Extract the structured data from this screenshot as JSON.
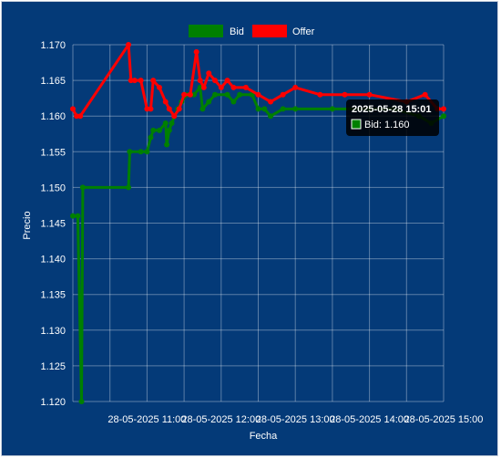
{
  "chart_data": {
    "type": "line",
    "xlabel": "Fecha",
    "ylabel": "Precio",
    "ylim": [
      1.12,
      1.17
    ],
    "y_ticks": [
      "1.170",
      "1.165",
      "1.160",
      "1.155",
      "1.150",
      "1.145",
      "1.140",
      "1.135",
      "1.130",
      "1.125",
      "1.120"
    ],
    "x_ticks": [
      "28-05-2025 11:00",
      "28-05-2025 12:00",
      "28-05-2025 13:00",
      "28-05-2025 14:00",
      "28-05-2025 15:00"
    ],
    "legend_position": "top-center",
    "grid": true,
    "series": [
      {
        "name": "Bid",
        "color": "#008000",
        "points": [
          [
            "10:00",
            1.146
          ],
          [
            "10:04",
            1.146
          ],
          [
            "10:07",
            1.12
          ],
          [
            "10:08",
            1.15
          ],
          [
            "10:45",
            1.15
          ],
          [
            "10:46",
            1.155
          ],
          [
            "10:55",
            1.155
          ],
          [
            "11:00",
            1.155
          ],
          [
            "11:03",
            1.157
          ],
          [
            "11:05",
            1.158
          ],
          [
            "11:10",
            1.158
          ],
          [
            "11:15",
            1.159
          ],
          [
            "11:16",
            1.156
          ],
          [
            "11:18",
            1.158
          ],
          [
            "11:20",
            1.159
          ],
          [
            "11:25",
            1.161
          ],
          [
            "11:28",
            1.162
          ],
          [
            "11:32",
            1.163
          ],
          [
            "11:38",
            1.163
          ],
          [
            "11:43",
            1.164
          ],
          [
            "11:45",
            1.161
          ],
          [
            "11:50",
            1.162
          ],
          [
            "11:55",
            1.163
          ],
          [
            "12:05",
            1.163
          ],
          [
            "12:10",
            1.162
          ],
          [
            "12:15",
            1.163
          ],
          [
            "12:25",
            1.163
          ],
          [
            "12:30",
            1.161
          ],
          [
            "12:35",
            1.161
          ],
          [
            "12:40",
            1.16
          ],
          [
            "12:50",
            1.161
          ],
          [
            "13:00",
            1.161
          ],
          [
            "13:30",
            1.161
          ],
          [
            "14:00",
            1.161
          ],
          [
            "14:20",
            1.161
          ],
          [
            "14:40",
            1.16
          ],
          [
            "14:50",
            1.159
          ],
          [
            "15:00",
            1.16
          ]
        ]
      },
      {
        "name": "Offer",
        "color": "#ff0000",
        "points": [
          [
            "10:00",
            1.161
          ],
          [
            "10:03",
            1.16
          ],
          [
            "10:06",
            1.16
          ],
          [
            "10:45",
            1.17
          ],
          [
            "10:47",
            1.165
          ],
          [
            "10:50",
            1.165
          ],
          [
            "10:55",
            1.165
          ],
          [
            "11:00",
            1.161
          ],
          [
            "11:03",
            1.161
          ],
          [
            "11:05",
            1.165
          ],
          [
            "11:10",
            1.164
          ],
          [
            "11:15",
            1.162
          ],
          [
            "11:18",
            1.161
          ],
          [
            "11:22",
            1.16
          ],
          [
            "11:26",
            1.161
          ],
          [
            "11:30",
            1.163
          ],
          [
            "11:35",
            1.163
          ],
          [
            "11:40",
            1.169
          ],
          [
            "11:43",
            1.165
          ],
          [
            "11:46",
            1.164
          ],
          [
            "11:50",
            1.166
          ],
          [
            "11:55",
            1.165
          ],
          [
            "12:00",
            1.164
          ],
          [
            "12:05",
            1.165
          ],
          [
            "12:10",
            1.164
          ],
          [
            "12:20",
            1.164
          ],
          [
            "12:30",
            1.163
          ],
          [
            "12:40",
            1.162
          ],
          [
            "12:50",
            1.163
          ],
          [
            "13:00",
            1.164
          ],
          [
            "13:20",
            1.163
          ],
          [
            "13:40",
            1.163
          ],
          [
            "14:00",
            1.163
          ],
          [
            "14:30",
            1.162
          ],
          [
            "14:45",
            1.163
          ],
          [
            "14:55",
            1.161
          ],
          [
            "15:00",
            1.161
          ]
        ]
      }
    ],
    "tooltip": {
      "title": "2025-05-28 15:01",
      "label": "Bid: 1.160"
    }
  }
}
